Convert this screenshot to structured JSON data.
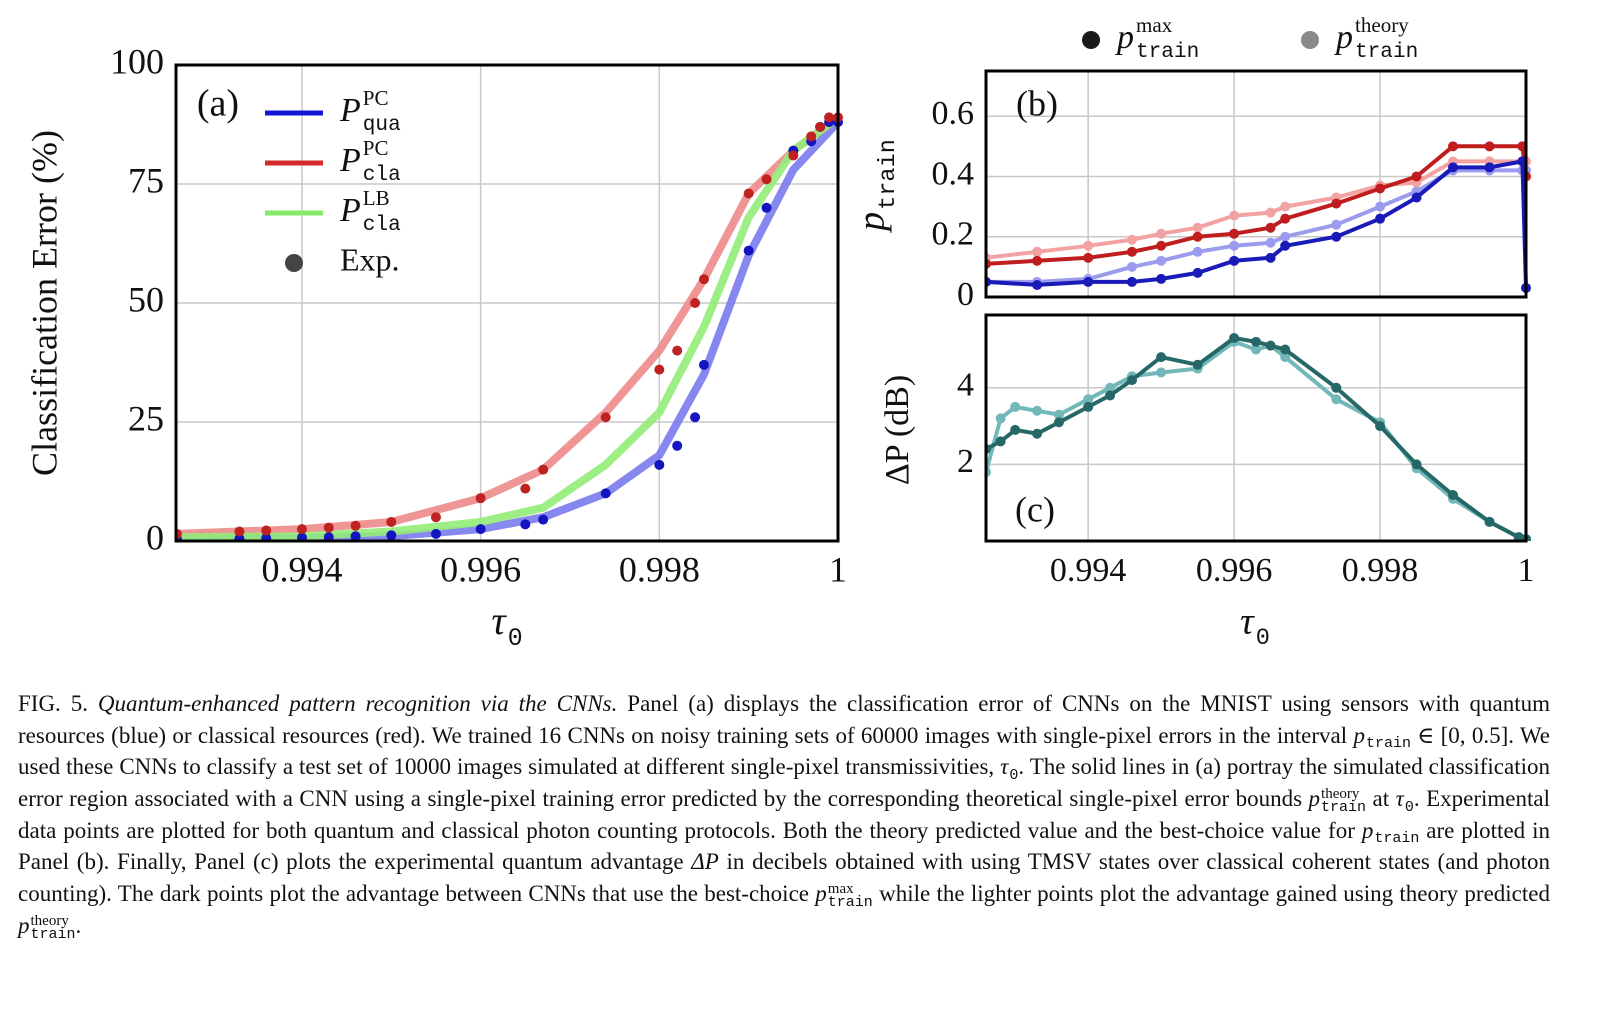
{
  "chart_data": [
    {
      "type": "line",
      "panel_label": "(a)",
      "y_label": "Classification Error (%)",
      "x_label": {
        "base": "τ",
        "sub": "0"
      },
      "xlim": [
        0.99259,
        1
      ],
      "xticks": [
        0.994,
        0.996,
        0.998,
        1
      ],
      "ylim": [
        0,
        100
      ],
      "yticks": [
        0,
        25,
        50,
        75,
        100
      ],
      "grid": true,
      "xtick_labels": true,
      "legend": [
        {
          "base": "P",
          "sup": "PC",
          "sub": "qua",
          "color": "#1515d8",
          "marker": "line"
        },
        {
          "base": "P",
          "sup": "PC",
          "sub": "cla",
          "color": "#d42a2a",
          "marker": "line"
        },
        {
          "base": "P",
          "sup": "LB",
          "sub": "cla",
          "color": "#88e86a",
          "marker": "line"
        },
        {
          "text": "Exp.",
          "color": "#444444",
          "marker": "dot"
        }
      ],
      "series": [
        {
          "style": "band",
          "color": "#7a7aee",
          "x": [
            0.9926,
            0.994,
            0.995,
            0.996,
            0.9967,
            0.9974,
            0.998,
            0.9985,
            0.999,
            0.9995,
            1
          ],
          "values": [
            0.5,
            0.6,
            1,
            2.5,
            5,
            10,
            18,
            35,
            60,
            78,
            88
          ]
        },
        {
          "style": "band",
          "color": "#ee8a8a",
          "x": [
            0.9926,
            0.994,
            0.995,
            0.996,
            0.9967,
            0.9974,
            0.998,
            0.9985,
            0.999,
            0.9995,
            1
          ],
          "values": [
            1.5,
            2.5,
            4,
            9,
            15,
            27,
            40,
            55,
            73,
            82,
            89
          ]
        },
        {
          "style": "band",
          "color": "#92ec78",
          "x": [
            0.9926,
            0.994,
            0.995,
            0.996,
            0.9967,
            0.9974,
            0.998,
            0.9985,
            0.999,
            0.9995,
            1
          ],
          "values": [
            0.8,
            1,
            2,
            4,
            7,
            16,
            27,
            45,
            68,
            82,
            89
          ]
        },
        {
          "style": "points",
          "color": "#1414c0",
          "x": [
            0.9926,
            0.9933,
            0.9936,
            0.994,
            0.9943,
            0.9946,
            0.995,
            0.9955,
            0.996,
            0.9965,
            0.9967,
            0.9974,
            0.998,
            0.9982,
            0.9984,
            0.9985,
            0.999,
            0.9992,
            0.9995,
            0.9997,
            0.9998,
            0.9999,
            1
          ],
          "values": [
            0.5,
            0.5,
            0.6,
            0.7,
            0.8,
            1,
            1.2,
            1.5,
            2.5,
            3.5,
            4.5,
            10,
            16,
            20,
            26,
            37,
            61,
            70,
            82,
            84,
            87,
            88,
            88
          ]
        },
        {
          "style": "points",
          "color": "#c02222",
          "x": [
            0.9926,
            0.9933,
            0.9936,
            0.994,
            0.9943,
            0.9946,
            0.995,
            0.9955,
            0.996,
            0.9965,
            0.9967,
            0.9974,
            0.998,
            0.9982,
            0.9984,
            0.9985,
            0.999,
            0.9992,
            0.9995,
            0.9997,
            0.9998,
            0.9999,
            1
          ],
          "values": [
            1.5,
            2,
            2.2,
            2.5,
            2.8,
            3.2,
            4,
            5,
            9,
            11,
            15,
            26,
            36,
            40,
            50,
            55,
            73,
            76,
            81,
            85,
            87,
            89,
            89
          ]
        }
      ]
    },
    {
      "type": "line",
      "panel_label": "(b)",
      "y_label": {
        "base": "p",
        "sub": "train"
      },
      "xlim": [
        0.9926,
        1
      ],
      "xticks": [
        0.994,
        0.996,
        0.998,
        1
      ],
      "ylim": [
        0,
        0.75
      ],
      "yticks": [
        0,
        0.2,
        0.4,
        0.6
      ],
      "grid": true,
      "xtick_labels": false,
      "legend": [
        {
          "base": "p",
          "sup": "max",
          "sub": "train",
          "color": "#1a1a1a",
          "marker": "dot"
        },
        {
          "base": "p",
          "sup": "theory",
          "sub": "train",
          "color": "#8a8a8a",
          "marker": "dot"
        }
      ],
      "series": [
        {
          "style": "linepoints",
          "color": "#f2a2a2",
          "x": [
            0.9926,
            0.9933,
            0.994,
            0.9946,
            0.995,
            0.9955,
            0.996,
            0.9965,
            0.9967,
            0.9974,
            0.998,
            0.9985,
            0.999,
            0.9995,
            0.99995,
            1
          ],
          "values": [
            0.13,
            0.15,
            0.17,
            0.19,
            0.21,
            0.23,
            0.27,
            0.28,
            0.3,
            0.33,
            0.37,
            0.38,
            0.45,
            0.45,
            0.45,
            0.45
          ]
        },
        {
          "style": "linepoints",
          "color": "#9c9cee",
          "x": [
            0.9926,
            0.9933,
            0.994,
            0.9946,
            0.995,
            0.9955,
            0.996,
            0.9965,
            0.9967,
            0.9974,
            0.998,
            0.9985,
            0.999,
            0.9995,
            0.99995,
            1
          ],
          "values": [
            0.05,
            0.05,
            0.06,
            0.1,
            0.12,
            0.15,
            0.17,
            0.18,
            0.2,
            0.24,
            0.3,
            0.35,
            0.42,
            0.42,
            0.42,
            0.42
          ]
        },
        {
          "style": "linepoints",
          "color": "#c01e1e",
          "x": [
            0.9926,
            0.9933,
            0.994,
            0.9946,
            0.995,
            0.9955,
            0.996,
            0.9965,
            0.9967,
            0.9974,
            0.998,
            0.9985,
            0.999,
            0.9995,
            0.99995,
            1
          ],
          "values": [
            0.11,
            0.12,
            0.13,
            0.15,
            0.17,
            0.2,
            0.21,
            0.23,
            0.26,
            0.31,
            0.36,
            0.4,
            0.5,
            0.5,
            0.5,
            0.4
          ]
        },
        {
          "style": "linepoints",
          "color": "#1a1ab8",
          "x": [
            0.9926,
            0.9933,
            0.994,
            0.9946,
            0.995,
            0.9955,
            0.996,
            0.9965,
            0.9967,
            0.9974,
            0.998,
            0.9985,
            0.999,
            0.9995,
            0.99995,
            1
          ],
          "values": [
            0.05,
            0.04,
            0.05,
            0.05,
            0.06,
            0.08,
            0.12,
            0.13,
            0.17,
            0.2,
            0.26,
            0.33,
            0.43,
            0.43,
            0.45,
            0.03
          ]
        }
      ]
    },
    {
      "type": "line",
      "panel_label": "(c)",
      "y_label": "ΔP (dB)",
      "x_label": {
        "base": "τ",
        "sub": "0"
      },
      "xlim": [
        0.9926,
        1
      ],
      "xticks": [
        0.994,
        0.996,
        0.998,
        1
      ],
      "ylim": [
        0,
        5.9
      ],
      "yticks": [
        2,
        4
      ],
      "grid": true,
      "xtick_labels": true,
      "series": [
        {
          "style": "linepoints",
          "color": "#72b8b8",
          "x": [
            0.9926,
            0.9928,
            0.993,
            0.9933,
            0.9936,
            0.994,
            0.9943,
            0.9946,
            0.995,
            0.9955,
            0.996,
            0.9963,
            0.9965,
            0.9967,
            0.9974,
            0.998,
            0.9985,
            0.999,
            0.9995,
            0.9999,
            1
          ],
          "values": [
            1.8,
            3.2,
            3.5,
            3.4,
            3.3,
            3.7,
            4.0,
            4.3,
            4.4,
            4.5,
            5.2,
            5.0,
            5.1,
            4.8,
            3.7,
            3.1,
            1.9,
            1.1,
            0.5,
            0.1,
            0.05
          ]
        },
        {
          "style": "linepoints",
          "color": "#266868",
          "x": [
            0.9926,
            0.9928,
            0.993,
            0.9933,
            0.9936,
            0.994,
            0.9943,
            0.9946,
            0.995,
            0.9955,
            0.996,
            0.9963,
            0.9965,
            0.9967,
            0.9974,
            0.998,
            0.9985,
            0.999,
            0.9995,
            0.9999,
            1
          ],
          "values": [
            2.4,
            2.6,
            2.9,
            2.8,
            3.1,
            3.5,
            3.8,
            4.2,
            4.8,
            4.6,
            5.3,
            5.2,
            5.1,
            5.0,
            4.0,
            3.0,
            2.0,
            1.2,
            0.5,
            0.1,
            0.05
          ]
        }
      ]
    }
  ],
  "caption": [
    {
      "t": "FIG. 5. "
    },
    {
      "t": "Quantum-enhanced pattern recognition via the CNNs.",
      "style": "italic"
    },
    {
      "t": " Panel (a) displays the classification error of CNNs on the MNIST using sensors with quantum resources (blue) or classical resources (red). We trained 16 CNNs on noisy training sets of 60000 images with single-pixel errors in the interval "
    },
    {
      "base": "p",
      "sub": "train"
    },
    {
      "t": " ∈ [0, 0.5].  We used these CNNs to classify a test set of 10000 images simulated at different single-pixel transmissivities, "
    },
    {
      "base": "τ",
      "sub": "0"
    },
    {
      "t": ".  The solid lines in (a) portray the simulated classification error region associated with a CNN using a single-pixel training error predicted by the corresponding theoretical single-pixel error bounds "
    },
    {
      "base": "p",
      "sub": "train",
      "sup": "theory"
    },
    {
      "t": " at "
    },
    {
      "base": "τ",
      "sub": "0"
    },
    {
      "t": ". Experimental data points are plotted for both quantum and classical photon counting protocols. Both the theory predicted value and the best-choice value for "
    },
    {
      "base": "p",
      "sub": "train"
    },
    {
      "t": " are plotted in Panel (b). Finally, Panel (c) plots the experimental quantum advantage "
    },
    {
      "base": "ΔP"
    },
    {
      "t": " in decibels obtained with using TMSV states over classical coherent states (and photon counting).  The dark points plot the advantage between CNNs that use the best-choice "
    },
    {
      "base": "p",
      "sub": "train",
      "sup": "max"
    },
    {
      "t": " while the lighter points plot the advantage gained using theory predicted "
    },
    {
      "base": "p",
      "sub": "train",
      "sup": "theory"
    },
    {
      "t": "."
    }
  ]
}
